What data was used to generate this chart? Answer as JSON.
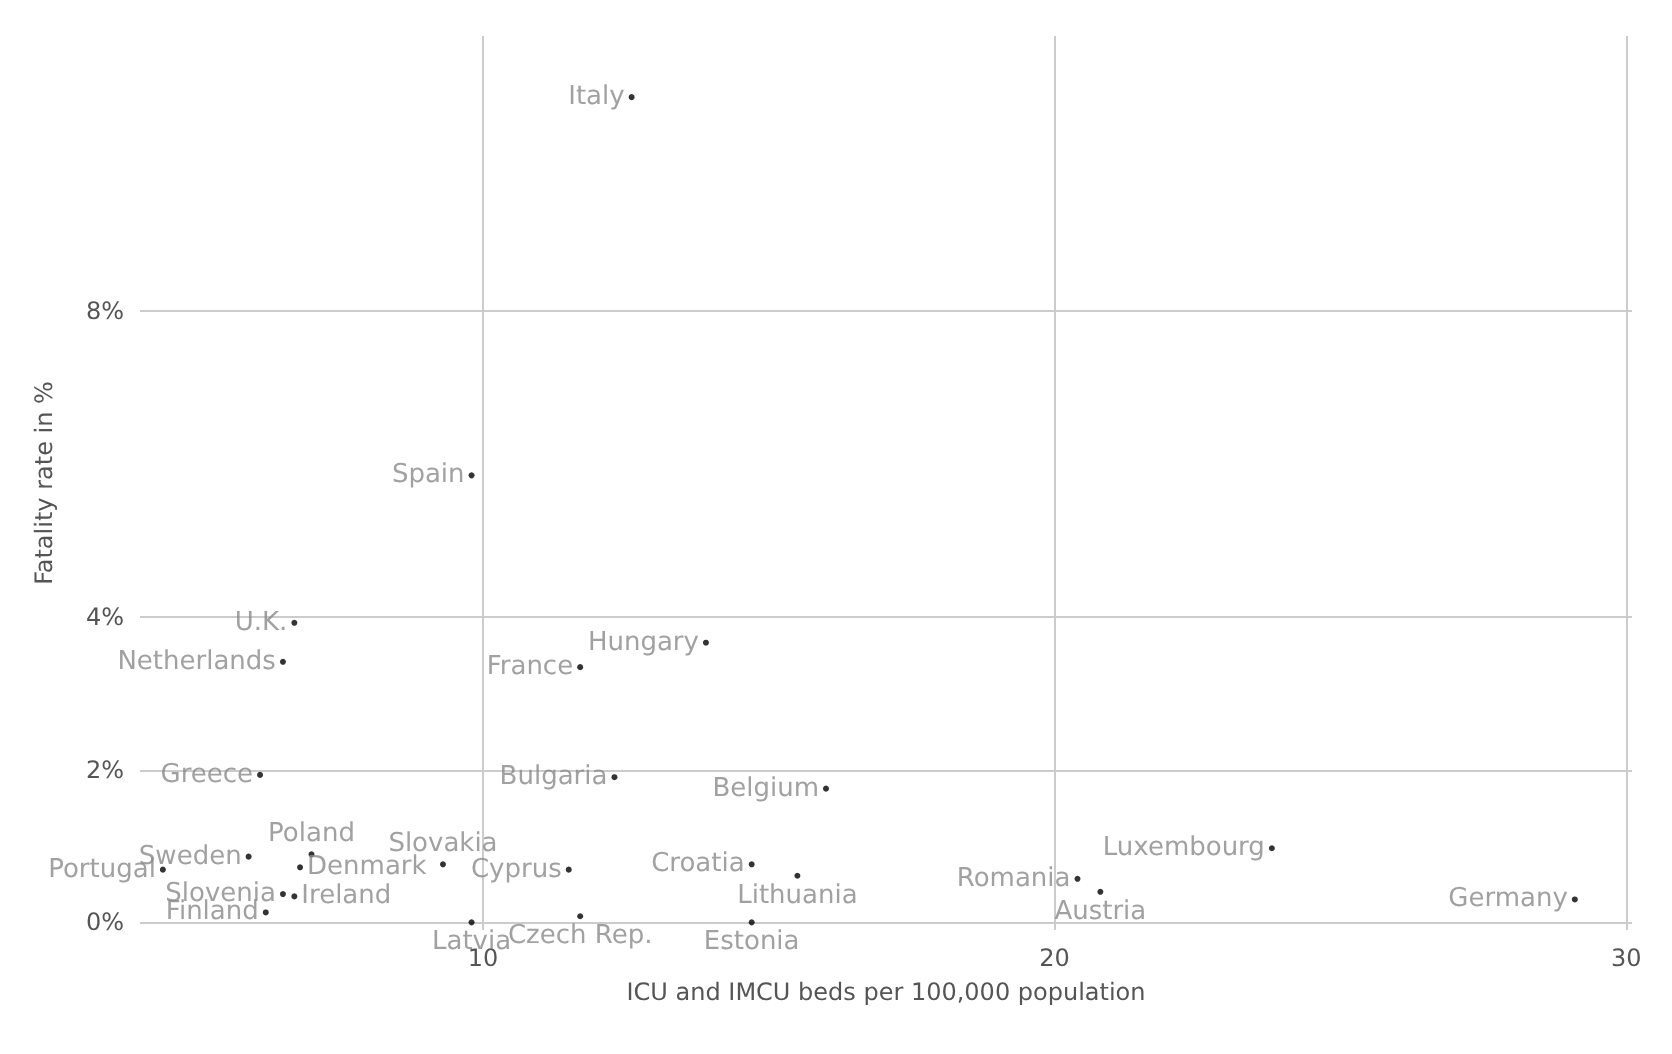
{
  "chart_data": {
    "type": "scatter",
    "xlabel": "ICU and IMCU beds per 100,000 population",
    "ylabel": "Fatality rate in %",
    "x": [
      12.6,
      9.8,
      6.7,
      6.5,
      13.9,
      11.7,
      6.1,
      12.3,
      16.0,
      5.9,
      7.0,
      4.4,
      6.8,
      6.5,
      6.7,
      6.2,
      9.3,
      11.5,
      11.7,
      9.8,
      14.7,
      15.5,
      14.7,
      20.4,
      20.8,
      23.8,
      29.1
    ],
    "values": [
      10.8,
      5.85,
      3.92,
      3.41,
      3.66,
      3.34,
      1.93,
      1.9,
      1.75,
      0.86,
      0.89,
      0.69,
      0.72,
      0.37,
      0.34,
      0.13,
      0.76,
      0.69,
      0.08,
      0,
      0.76,
      0.61,
      0,
      0.57,
      0.4,
      0.97,
      0.3
    ],
    "value_labels": [
      "Italy",
      "Spain",
      "U.K.",
      "Netherlands",
      "Hungary",
      "France",
      "Greece",
      "Bulgaria",
      "Belgium",
      "Sweden",
      "Poland",
      "Portugal",
      "Denmark",
      "Slovenia",
      "Ireland",
      "Finland",
      "Slovakia",
      "Cyprus",
      "Czech Rep.",
      "Latvia",
      "Croatia",
      "Lithuania",
      "Estonia",
      "Romania",
      "Austria",
      "Luxembourg",
      "Germany"
    ],
    "color": "#000000",
    "marker": "circle",
    "grid": true,
    "xlim": [
      4,
      30.1
    ],
    "xticks": [
      10,
      20,
      30
    ],
    "ylim": [
      -0.1,
      11.6
    ],
    "yticks": [
      {
        "value": 0,
        "label": "0%"
      },
      {
        "value": 2,
        "label": "2%"
      },
      {
        "value": 4,
        "label": "4%"
      },
      {
        "value": 8,
        "label": "8%"
      }
    ]
  }
}
